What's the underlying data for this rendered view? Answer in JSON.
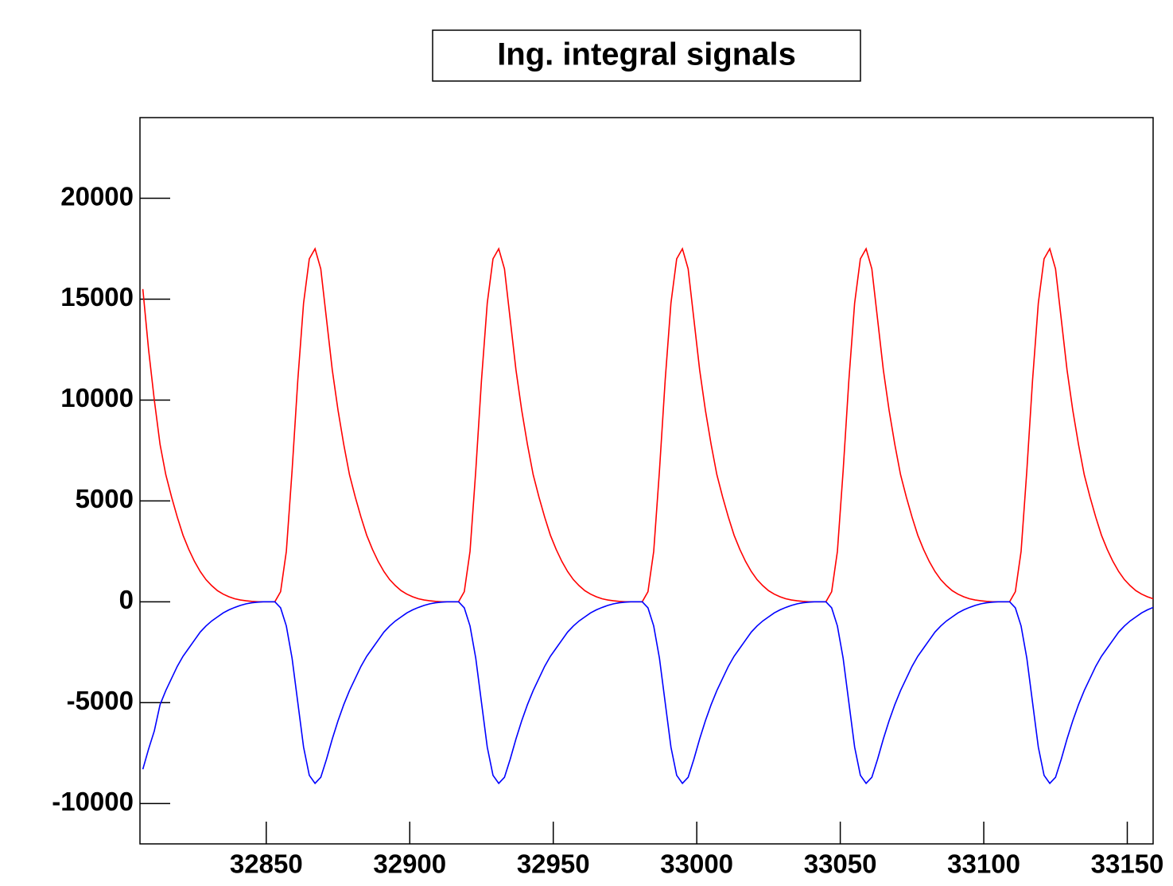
{
  "chart_data": {
    "type": "line",
    "title": "Ing. integral signals",
    "x": [
      32807,
      32809,
      32811,
      32813,
      32815,
      32817,
      32819,
      32821,
      32823,
      32825,
      32827,
      32829,
      32831,
      32833,
      32835,
      32837,
      32839,
      32841,
      32843,
      32845,
      32847,
      32849,
      32851,
      32853,
      32855,
      32857,
      32859,
      32861,
      32863,
      32865,
      32867,
      32869,
      32871,
      32873,
      32875,
      32877,
      32879,
      32881,
      32883,
      32885,
      32887,
      32889,
      32891,
      32893,
      32895,
      32897,
      32899,
      32901,
      32903,
      32905,
      32907,
      32909,
      32911,
      32913,
      32915,
      32917,
      32919,
      32921,
      32923,
      32925,
      32927,
      32929,
      32931,
      32933,
      32935,
      32937,
      32939,
      32941,
      32943,
      32945,
      32947,
      32949,
      32951,
      32953,
      32955,
      32957,
      32959,
      32961,
      32963,
      32965,
      32967,
      32969,
      32971,
      32973,
      32975,
      32977,
      32979,
      32981,
      32983,
      32985,
      32987,
      32989,
      32991,
      32993,
      32995,
      32997,
      32999,
      33001,
      33003,
      33005,
      33007,
      33009,
      33011,
      33013,
      33015,
      33017,
      33019,
      33021,
      33023,
      33025,
      33027,
      33029,
      33031,
      33033,
      33035,
      33037,
      33039,
      33041,
      33043,
      33045,
      33047,
      33049,
      33051,
      33053,
      33055,
      33057,
      33059,
      33061,
      33063,
      33065,
      33067,
      33069,
      33071,
      33073,
      33075,
      33077,
      33079,
      33081,
      33083,
      33085,
      33087,
      33089,
      33091,
      33093,
      33095,
      33097,
      33099,
      33101,
      33103,
      33105,
      33107,
      33109,
      33111,
      33113,
      33115,
      33117,
      33119,
      33121,
      33123,
      33125,
      33127,
      33129,
      33131,
      33133,
      33135,
      33137,
      33139,
      33141,
      33143,
      33145,
      33147,
      33149,
      33151,
      33153,
      33155,
      33157,
      33159
    ],
    "series": [
      {
        "color": "#ff0000",
        "values": [
          15500,
          12500,
          10000,
          7800,
          6300,
          5200,
          4200,
          3300,
          2600,
          2000,
          1500,
          1100,
          800,
          550,
          380,
          250,
          150,
          90,
          50,
          20,
          0,
          0,
          0,
          0,
          500,
          2500,
          6500,
          11000,
          14800,
          17000,
          17500,
          16500,
          14000,
          11500,
          9500,
          7800,
          6300,
          5200,
          4200,
          3300,
          2600,
          2000,
          1500,
          1100,
          800,
          550,
          380,
          250,
          150,
          90,
          50,
          20,
          0,
          0,
          0,
          0,
          500,
          2500,
          6500,
          11000,
          14800,
          17000,
          17500,
          16500,
          14000,
          11500,
          9500,
          7800,
          6300,
          5200,
          4200,
          3300,
          2600,
          2000,
          1500,
          1100,
          800,
          550,
          380,
          250,
          150,
          90,
          50,
          20,
          0,
          0,
          0,
          0,
          500,
          2500,
          6500,
          11000,
          14800,
          17000,
          17500,
          16500,
          14000,
          11500,
          9500,
          7800,
          6300,
          5200,
          4200,
          3300,
          2600,
          2000,
          1500,
          1100,
          800,
          550,
          380,
          250,
          150,
          90,
          50,
          20,
          0,
          0,
          0,
          0,
          500,
          2500,
          6500,
          11000,
          14800,
          17000,
          17500,
          16500,
          14000,
          11500,
          9500,
          7800,
          6300,
          5200,
          4200,
          3300,
          2600,
          2000,
          1500,
          1100,
          800,
          550,
          380,
          250,
          150,
          90,
          50,
          20,
          0,
          0,
          0,
          0,
          500,
          2500,
          6500,
          11000,
          14800,
          17000,
          17500,
          16500,
          14000,
          11500,
          9500,
          7800,
          6300,
          5200,
          4200,
          3300,
          2600,
          2000,
          1500,
          1100,
          800,
          550,
          380,
          250,
          150
        ]
      },
      {
        "color": "#0000ff",
        "values": [
          -8300,
          -7300,
          -6400,
          -5100,
          -4400,
          -3800,
          -3200,
          -2700,
          -2300,
          -1900,
          -1500,
          -1200,
          -950,
          -750,
          -550,
          -400,
          -280,
          -180,
          -100,
          -50,
          -20,
          0,
          0,
          0,
          -300,
          -1200,
          -2800,
          -5000,
          -7200,
          -8600,
          -9000,
          -8700,
          -7800,
          -6800,
          -5900,
          -5100,
          -4400,
          -3800,
          -3200,
          -2700,
          -2300,
          -1900,
          -1500,
          -1200,
          -950,
          -750,
          -550,
          -400,
          -280,
          -180,
          -100,
          -50,
          -20,
          0,
          0,
          0,
          -300,
          -1200,
          -2800,
          -5000,
          -7200,
          -8600,
          -9000,
          -8700,
          -7800,
          -6800,
          -5900,
          -5100,
          -4400,
          -3800,
          -3200,
          -2700,
          -2300,
          -1900,
          -1500,
          -1200,
          -950,
          -750,
          -550,
          -400,
          -280,
          -180,
          -100,
          -50,
          -20,
          0,
          0,
          0,
          -300,
          -1200,
          -2800,
          -5000,
          -7200,
          -8600,
          -9000,
          -8700,
          -7800,
          -6800,
          -5900,
          -5100,
          -4400,
          -3800,
          -3200,
          -2700,
          -2300,
          -1900,
          -1500,
          -1200,
          -950,
          -750,
          -550,
          -400,
          -280,
          -180,
          -100,
          -50,
          -20,
          0,
          0,
          0,
          -300,
          -1200,
          -2800,
          -5000,
          -7200,
          -8600,
          -9000,
          -8700,
          -7800,
          -6800,
          -5900,
          -5100,
          -4400,
          -3800,
          -3200,
          -2700,
          -2300,
          -1900,
          -1500,
          -1200,
          -950,
          -750,
          -550,
          -400,
          -280,
          -180,
          -100,
          -50,
          -20,
          0,
          0,
          0,
          -300,
          -1200,
          -2800,
          -5000,
          -7200,
          -8600,
          -9000,
          -8700,
          -7800,
          -6800,
          -5900,
          -5100,
          -4400,
          -3800,
          -3200,
          -2700,
          -2300,
          -1900,
          -1500,
          -1200,
          -950,
          -750,
          -550,
          -400,
          -280
        ]
      }
    ],
    "xlim": [
      32806,
      33159
    ],
    "xticks": [
      32850,
      32900,
      32950,
      33000,
      33050,
      33100,
      33150
    ],
    "ylim": [
      -12000,
      24000
    ],
    "yticks": [
      -10000,
      -5000,
      0,
      5000,
      10000,
      15000,
      20000
    ]
  }
}
